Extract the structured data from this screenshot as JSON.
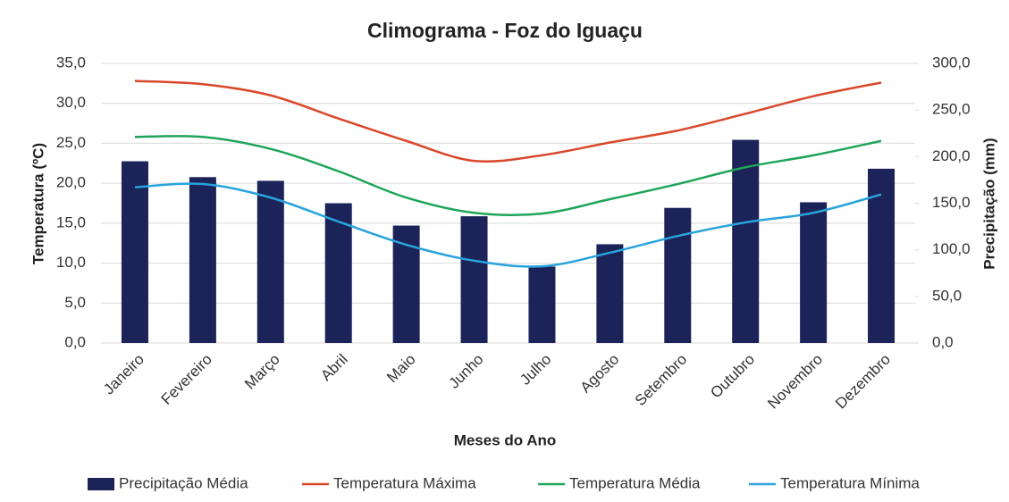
{
  "chart_data": {
    "type": "bar-line",
    "title": "Climograma - Foz do Iguaçu",
    "x_label": "Meses do Ano",
    "y_label": "Temperatura (ºC)",
    "y2_label": "Precipitação (mm)",
    "categories": [
      "Janeiro",
      "Fevereiro",
      "Março",
      "Abril",
      "Maio",
      "Junho",
      "Julho",
      "Agosto",
      "Setembro",
      "Outubro",
      "Novembro",
      "Dezembro"
    ],
    "ylim": [
      0,
      35
    ],
    "yticks": [
      {
        "value": 0,
        "label": "0,0"
      },
      {
        "value": 5,
        "label": "5,0"
      },
      {
        "value": 10,
        "label": "10,0"
      },
      {
        "value": 15,
        "label": "15,0"
      },
      {
        "value": 20,
        "label": "20,0"
      },
      {
        "value": 25,
        "label": "25,0"
      },
      {
        "value": 30,
        "label": "30,0"
      },
      {
        "value": 35,
        "label": "35,0"
      }
    ],
    "y2lim": [
      0,
      300
    ],
    "y2ticks": [
      {
        "value": 0,
        "label": "0,0"
      },
      {
        "value": 50,
        "label": "50,0"
      },
      {
        "value": 100,
        "label": "100,0"
      },
      {
        "value": 150,
        "label": "150,0"
      },
      {
        "value": 200,
        "label": "200,0"
      },
      {
        "value": 250,
        "label": "250,0"
      },
      {
        "value": 300,
        "label": "300,0"
      }
    ],
    "grid": true,
    "legend": "bottom",
    "series": [
      {
        "name": "Precipitação Média",
        "type": "bar",
        "axis": "y2",
        "color": "#1b2358",
        "values": [
          195,
          178,
          174,
          150,
          126,
          136,
          82,
          106,
          145,
          218,
          151,
          187
        ]
      },
      {
        "name": "Temperatura Máxima",
        "type": "line",
        "color": "#d9482b",
        "values": [
          32.8,
          32.4,
          31.0,
          28.1,
          25.3,
          22.8,
          23.5,
          25.1,
          26.6,
          28.7,
          30.9,
          32.6
        ]
      },
      {
        "name": "Temperatura Média",
        "type": "line",
        "color": "#1fa55a",
        "values": [
          25.8,
          25.8,
          24.3,
          21.5,
          18.2,
          16.3,
          16.2,
          18.0,
          19.9,
          22.0,
          23.5,
          25.3
        ]
      },
      {
        "name": "Temperatura Mínima",
        "type": "line",
        "color": "#29a3dc",
        "values": [
          19.5,
          19.9,
          18.2,
          15.2,
          12.3,
          10.3,
          9.6,
          11.3,
          13.4,
          15.1,
          16.3,
          18.6
        ]
      }
    ]
  }
}
